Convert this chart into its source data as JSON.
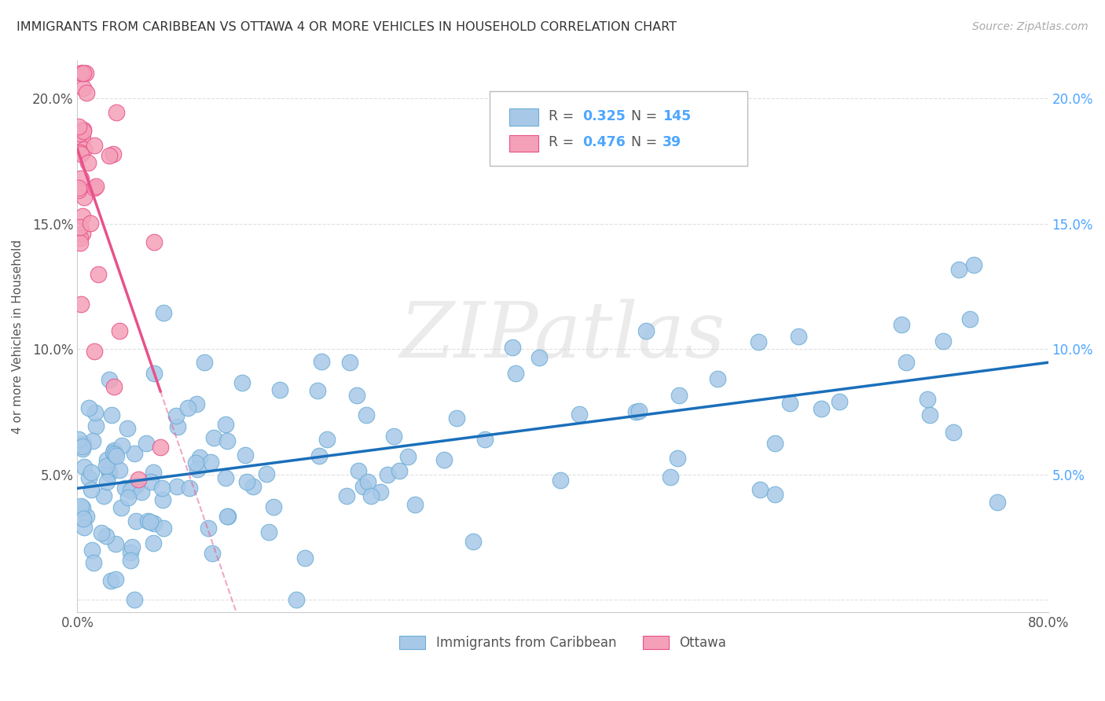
{
  "title": "IMMIGRANTS FROM CARIBBEAN VS OTTAWA 4 OR MORE VEHICLES IN HOUSEHOLD CORRELATION CHART",
  "source": "Source: ZipAtlas.com",
  "ylabel": "4 or more Vehicles in Household",
  "xlim": [
    0.0,
    0.8
  ],
  "ylim": [
    -0.005,
    0.215
  ],
  "xticks": [
    0.0,
    0.1,
    0.2,
    0.3,
    0.4,
    0.5,
    0.6,
    0.7,
    0.8
  ],
  "yticks": [
    0.0,
    0.05,
    0.1,
    0.15,
    0.2
  ],
  "xtick_labels": [
    "0.0%",
    "",
    "",
    "",
    "",
    "",
    "",
    "",
    "80.0%"
  ],
  "ytick_labels_left": [
    "",
    "5.0%",
    "10.0%",
    "15.0%",
    "20.0%"
  ],
  "ytick_labels_right": [
    "",
    "5.0%",
    "10.0%",
    "15.0%",
    "20.0%"
  ],
  "series1_color": "#a8c8e8",
  "series2_color": "#f4a0b8",
  "series1_edge": "#6baed6",
  "series2_edge": "#e8518a",
  "series1_label": "Immigrants from Caribbean",
  "series2_label": "Ottawa",
  "R1": 0.325,
  "N1": 145,
  "R2": 0.476,
  "N2": 39,
  "watermark": "ZIPatlas",
  "r_color": "#4da6ff",
  "n_color": "#4da6ff",
  "trend1_color": "#1a6fba",
  "trend2_color": "#e8518a",
  "background_color": "#ffffff",
  "grid_color": "#e0e0e0"
}
